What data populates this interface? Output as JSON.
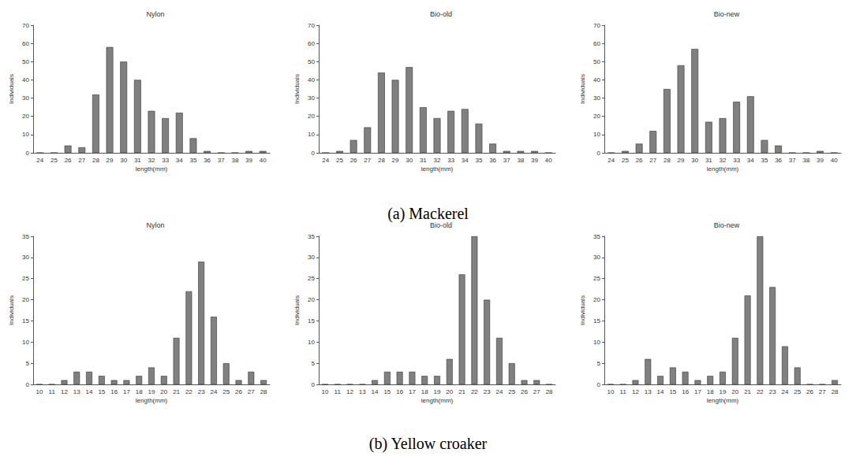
{
  "chart_data": [
    {
      "type": "bar",
      "title": "Nylon",
      "x_label": "length(mm)",
      "y_label": "Individuals",
      "categories": [
        "24",
        "25",
        "26",
        "27",
        "28",
        "29",
        "30",
        "31",
        "32",
        "33",
        "34",
        "35",
        "36",
        "37",
        "38",
        "39",
        "40"
      ],
      "values": [
        0,
        0,
        4,
        3,
        32,
        58,
        50,
        40,
        23,
        19,
        22,
        8,
        1,
        0,
        0,
        1,
        1
      ],
      "color": "#808080",
      "ylim": [
        0,
        70
      ],
      "yticks": [
        0,
        10,
        20,
        30,
        40,
        50,
        60,
        70
      ],
      "grid": false
    },
    {
      "type": "bar",
      "title": "Bio-old",
      "x_label": "length(mm)",
      "y_label": "Individuals",
      "categories": [
        "24",
        "25",
        "26",
        "27",
        "28",
        "29",
        "30",
        "31",
        "32",
        "33",
        "34",
        "35",
        "36",
        "37",
        "38",
        "39",
        "40"
      ],
      "values": [
        0,
        1,
        7,
        14,
        44,
        40,
        47,
        25,
        19,
        23,
        24,
        16,
        5,
        1,
        1,
        1,
        0
      ],
      "color": "#808080",
      "ylim": [
        0,
        70
      ],
      "yticks": [
        0,
        10,
        20,
        30,
        40,
        50,
        60,
        70
      ],
      "grid": false
    },
    {
      "type": "bar",
      "title": "Bio-new",
      "x_label": "length(mm)",
      "y_label": "Individuals",
      "categories": [
        "24",
        "25",
        "26",
        "27",
        "28",
        "29",
        "30",
        "31",
        "32",
        "33",
        "34",
        "35",
        "36",
        "37",
        "38",
        "39",
        "40"
      ],
      "values": [
        0,
        1,
        5,
        12,
        35,
        48,
        57,
        17,
        19,
        28,
        31,
        7,
        4,
        0,
        0,
        1,
        0
      ],
      "color": "#808080",
      "ylim": [
        0,
        70
      ],
      "yticks": [
        0,
        10,
        20,
        30,
        40,
        50,
        60,
        70
      ],
      "grid": false
    },
    {
      "type": "bar",
      "title": "Nylon",
      "x_label": "length(mm)",
      "y_label": "Individuals",
      "categories": [
        "10",
        "11",
        "12",
        "13",
        "14",
        "15",
        "16",
        "17",
        "18",
        "19",
        "20",
        "21",
        "22",
        "23",
        "24",
        "25",
        "26",
        "27",
        "28"
      ],
      "values": [
        0,
        0,
        1,
        3,
        3,
        2,
        1,
        1,
        2,
        4,
        2,
        11,
        22,
        29,
        16,
        5,
        1,
        3,
        1
      ],
      "color": "#808080",
      "ylim": [
        0,
        35
      ],
      "yticks": [
        0,
        5,
        10,
        15,
        20,
        25,
        30,
        35
      ],
      "grid": false
    },
    {
      "type": "bar",
      "title": "Bio-old",
      "x_label": "length(mm)",
      "y_label": "Individuals",
      "categories": [
        "10",
        "11",
        "12",
        "13",
        "14",
        "15",
        "16",
        "17",
        "18",
        "19",
        "20",
        "21",
        "22",
        "23",
        "24",
        "25",
        "26",
        "27",
        "28"
      ],
      "values": [
        0,
        0,
        0,
        0,
        1,
        3,
        3,
        3,
        2,
        2,
        6,
        26,
        35,
        20,
        11,
        5,
        1,
        1,
        0
      ],
      "color": "#808080",
      "ylim": [
        0,
        35
      ],
      "yticks": [
        0,
        5,
        10,
        15,
        20,
        25,
        30,
        35
      ],
      "grid": false
    },
    {
      "type": "bar",
      "title": "Bio-new",
      "x_label": "length(mm)",
      "y_label": "Individuals",
      "categories": [
        "10",
        "11",
        "12",
        "13",
        "14",
        "15",
        "16",
        "17",
        "18",
        "19",
        "20",
        "21",
        "22",
        "23",
        "24",
        "25",
        "26",
        "27",
        "28"
      ],
      "values": [
        0,
        0,
        1,
        6,
        2,
        4,
        3,
        1,
        2,
        3,
        11,
        21,
        35,
        23,
        9,
        4,
        0,
        0,
        1
      ],
      "color": "#808080",
      "ylim": [
        0,
        35
      ],
      "yticks": [
        0,
        5,
        10,
        15,
        20,
        25,
        30,
        35
      ],
      "grid": false
    }
  ],
  "captions": [
    "(a) Mackerel",
    "(b) Yellow croaker"
  ]
}
